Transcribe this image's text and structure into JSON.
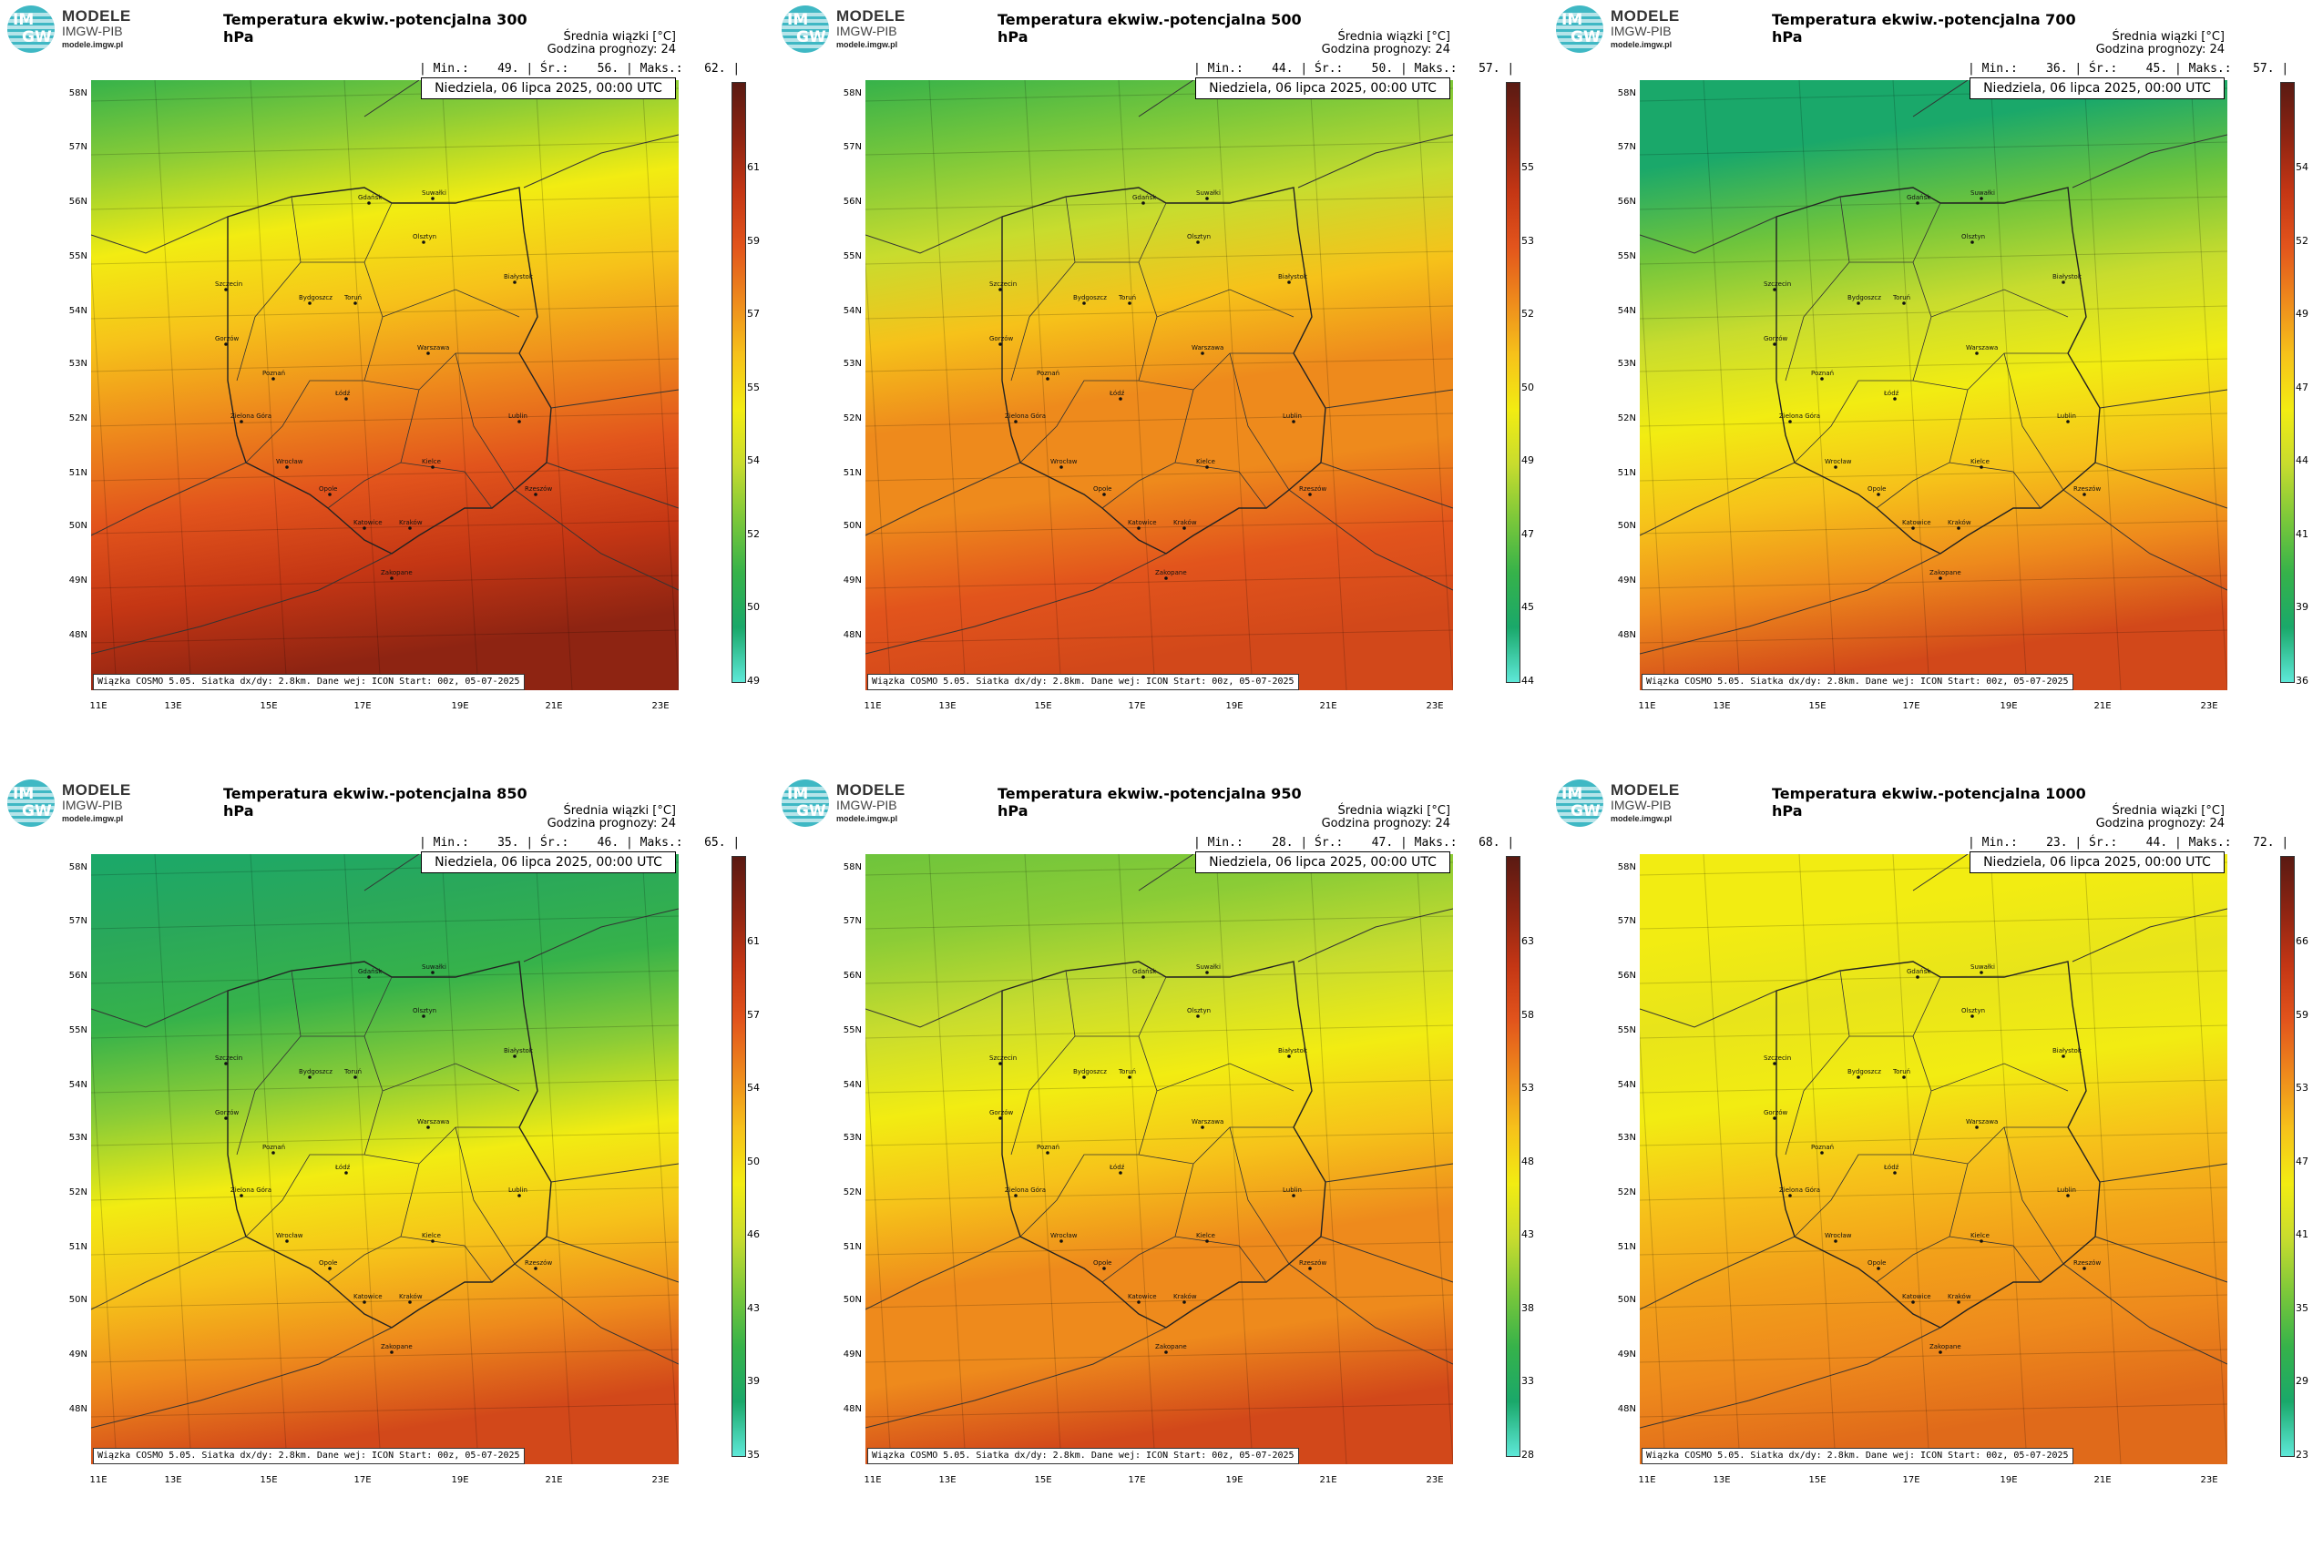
{
  "logo": {
    "title": "MODELE",
    "subtitle": "IMGW-PIB",
    "url": "modele.imgw.pl",
    "mark_top": "IM",
    "mark_bottom": "GW",
    "color": "#3fb8c4"
  },
  "header": {
    "info_line1": "Średnia wiązki [°C]",
    "info_line2": "Godzina prognozy: 24"
  },
  "date": "Niedziela, 06 lipca 2025, 00:00 UTC",
  "footer": "Wiązka COSMO 5.05. Siatka dx/dy: 2.8km. Dane wej: ICON Start: 00z, 05-07-2025",
  "lat_labels": [
    "58N",
    "57N",
    "56N",
    "55N",
    "54N",
    "53N",
    "52N",
    "51N",
    "50N",
    "49N",
    "48N"
  ],
  "lon_labels": [
    "11E",
    "13E",
    "15E",
    "17E",
    "19E",
    "21E",
    "23E"
  ],
  "cities": [
    "Gdańsk",
    "Suwałki",
    "Olsztyn",
    "Szczecin",
    "Białystok",
    "Bydgoszcz",
    "Toruń",
    "Gorzów",
    "Warszawa",
    "Poznań",
    "Łódź",
    "Zielona Góra",
    "Lublin",
    "Wrocław",
    "Kielce",
    "Opole",
    "Rzeszów",
    "Katowice",
    "Kraków",
    "Zakopane"
  ],
  "colorscale": [
    "#5ee8d8",
    "#1aa86a",
    "#36b24a",
    "#7cc83a",
    "#c8dc2e",
    "#f2ec12",
    "#f6c21a",
    "#ee8a1c",
    "#e2541c",
    "#c43614",
    "#8e2412",
    "#5a1a12"
  ],
  "panels": [
    {
      "title": "Temperatura ekwiw.-potencjalna 300 hPa",
      "stats": "| Min.:    49. | Śr.:    56. | Maks.:   62. |",
      "ticks": [
        "61",
        "59",
        "57",
        "55",
        "54",
        "52",
        "50",
        "49"
      ]
    },
    {
      "title": "Temperatura ekwiw.-potencjalna 500 hPa",
      "stats": "| Min.:    44. | Śr.:    50. | Maks.:   57. |",
      "ticks": [
        "55",
        "53",
        "52",
        "50",
        "49",
        "47",
        "45",
        "44"
      ]
    },
    {
      "title": "Temperatura ekwiw.-potencjalna 700 hPa",
      "stats": "| Min.:    36. | Śr.:    45. | Maks.:   57. |",
      "ticks": [
        "54",
        "52",
        "49",
        "47",
        "44",
        "41",
        "39",
        "36"
      ]
    },
    {
      "title": "Temperatura ekwiw.-potencjalna 850 hPa",
      "stats": "| Min.:    35. | Śr.:    46. | Maks.:   65. |",
      "ticks": [
        "61",
        "57",
        "54",
        "50",
        "46",
        "43",
        "39",
        "35"
      ]
    },
    {
      "title": "Temperatura ekwiw.-potencjalna 950 hPa",
      "stats": "| Min.:    28. | Śr.:    47. | Maks.:   68. |",
      "ticks": [
        "63",
        "58",
        "53",
        "48",
        "43",
        "38",
        "33",
        "28"
      ]
    },
    {
      "title": "Temperatura ekwiw.-potencjalna 1000 hPa",
      "stats": "| Min.:    23. | Śr.:    44. | Maks.:   72. |",
      "ticks": [
        "66",
        "59",
        "53",
        "47",
        "41",
        "35",
        "29",
        "23"
      ]
    }
  ]
}
